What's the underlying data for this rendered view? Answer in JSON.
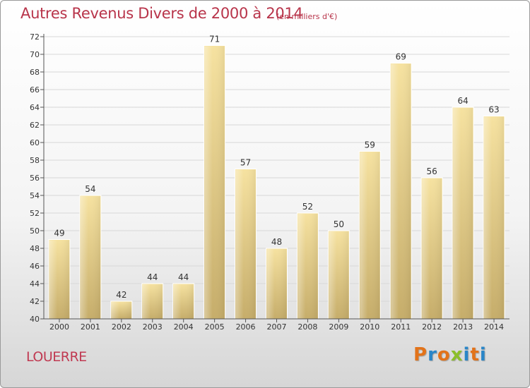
{
  "header": {
    "title": "Autres Revenus Divers de 2000 à 2014",
    "subtitle": "(en milliers d'€)"
  },
  "footer": {
    "place": "LOUERRE",
    "logo": "Proxiti"
  },
  "colors": {
    "title": "#b8344a",
    "bar_top": "#f6e2a0",
    "bar_bottom": "#c6ad6a",
    "logo_letters": [
      "#e2731a",
      "#2a86c8",
      "#e2731a",
      "#8cbf2a",
      "#2a86c8",
      "#e2731a",
      "#2a86c8"
    ]
  },
  "chart_data": {
    "type": "bar",
    "title": "Autres Revenus Divers de 2000 à 2014",
    "subtitle": "(en milliers d'€)",
    "categories": [
      "2000",
      "2001",
      "2002",
      "2003",
      "2004",
      "2005",
      "2006",
      "2007",
      "2008",
      "2009",
      "2010",
      "2011",
      "2012",
      "2013",
      "2014"
    ],
    "values": [
      49,
      54,
      42,
      44,
      44,
      71,
      57,
      48,
      52,
      50,
      59,
      69,
      56,
      64,
      63
    ],
    "ylim": [
      40,
      72
    ],
    "yticks": [
      40,
      42,
      44,
      46,
      48,
      50,
      52,
      54,
      56,
      58,
      60,
      62,
      64,
      66,
      68,
      70,
      72
    ],
    "grid": true,
    "xlabel": "",
    "ylabel": ""
  }
}
